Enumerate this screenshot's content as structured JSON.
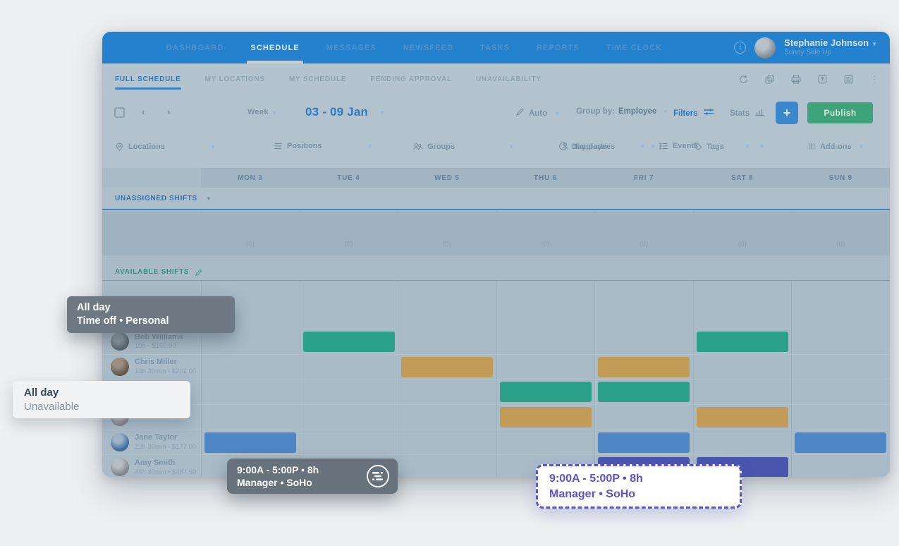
{
  "colors": {
    "nav_blue": "#2381cd",
    "accent_blue": "#2f7cc3",
    "publish_green": "#3fa37a",
    "green": "#2ca189",
    "gold": "#c29b56",
    "blue": "#4e87c5",
    "indigo": "#4a56ae",
    "purple": "#5b54cc"
  },
  "nav": {
    "tabs": [
      {
        "label": "DASHBOARD"
      },
      {
        "label": "SCHEDULE"
      },
      {
        "label": "MESSAGES"
      },
      {
        "label": "NEWSFEED"
      },
      {
        "label": "TASKS"
      },
      {
        "label": "REPORTS"
      },
      {
        "label": "TIME CLOCK"
      }
    ],
    "active_tab": "SCHEDULE",
    "user": {
      "name": "Stephanie Johnson",
      "org": "Sunny Side Up"
    }
  },
  "subnav": {
    "tabs": [
      {
        "label": "FULL SCHEDULE"
      },
      {
        "label": "MY LOCATIONS"
      },
      {
        "label": "MY SCHEDULE"
      },
      {
        "label": "PENDING APPROVAL"
      },
      {
        "label": "UNAVAILABILITY"
      }
    ],
    "active_tab": "FULL SCHEDULE"
  },
  "toolbar": {
    "prev": "‹",
    "next": "›",
    "week_label": "Week",
    "date_range": "03 - 09 Jan",
    "auto_label": "Auto",
    "group_by_label": "Group by:",
    "group_by_value": "Employee",
    "filters_label": "Filters",
    "stats_label": "Stats",
    "plus_label": "+",
    "publish_label": "Publish"
  },
  "filter_chips": [
    {
      "label": "Locations"
    },
    {
      "label": "Positions"
    },
    {
      "label": "Groups"
    },
    {
      "label": "Employees"
    },
    {
      "label": "Tags"
    },
    {
      "label": "Day parts"
    },
    {
      "label": "Events"
    },
    {
      "label": "Add-ons"
    }
  ],
  "days": [
    {
      "label": "MON 3"
    },
    {
      "label": "TUE 4"
    },
    {
      "label": "WED 5"
    },
    {
      "label": "THU 6"
    },
    {
      "label": "FRI 7"
    },
    {
      "label": "SAT 8"
    },
    {
      "label": "SUN 9"
    }
  ],
  "sections": {
    "unassigned": {
      "title": "UNASSIGNED SHIFTS",
      "day_counts": [
        "(0)",
        "(0)",
        "(0)",
        "(0)",
        "(0)",
        "(0)",
        "(0)"
      ]
    },
    "available": {
      "title": "AVAILABLE SHIFTS"
    }
  },
  "employees": [
    {
      "name": "Bob Williams",
      "meta": "10h - $150.00"
    },
    {
      "name": "Chris Miller",
      "meta": "13h 30min - $202.00"
    },
    {
      "name": "",
      "meta": ""
    },
    {
      "name": "",
      "meta": ""
    },
    {
      "name": "Jane Taylor",
      "meta": "22h 30min - $177.00"
    },
    {
      "name": "Amy Smith",
      "meta": "44h 30min • $467.50"
    }
  ],
  "shifts": [
    {
      "row": 0,
      "day": 1,
      "color": "green"
    },
    {
      "row": 0,
      "day": 5,
      "color": "green"
    },
    {
      "row": 1,
      "day": 2,
      "color": "gold"
    },
    {
      "row": 1,
      "day": 4,
      "color": "gold"
    },
    {
      "row": 2,
      "day": 3,
      "color": "green"
    },
    {
      "row": 2,
      "day": 4,
      "color": "green"
    },
    {
      "row": 3,
      "day": 3,
      "color": "gold"
    },
    {
      "row": 3,
      "day": 5,
      "color": "gold"
    },
    {
      "row": 4,
      "day": 0,
      "color": "blue"
    },
    {
      "row": 4,
      "day": 4,
      "color": "blue"
    },
    {
      "row": 4,
      "day": 6,
      "color": "blue"
    },
    {
      "row": 5,
      "day": 4,
      "color": "indigo"
    },
    {
      "row": 5,
      "day": 5,
      "color": "indigo"
    }
  ],
  "tooltips": {
    "timeoff": {
      "line1": "All day",
      "line2": "Time off • Personal"
    },
    "unavailable": {
      "line1": "All day",
      "line2": "Unavailable"
    },
    "shift": {
      "line1": "9:00A - 5:00P • 8h",
      "line2": "Manager • SoHo"
    },
    "drag_ghost": {
      "line1": "9:00A - 5:00P • 8h",
      "line2": "Manager • SoHo"
    }
  }
}
